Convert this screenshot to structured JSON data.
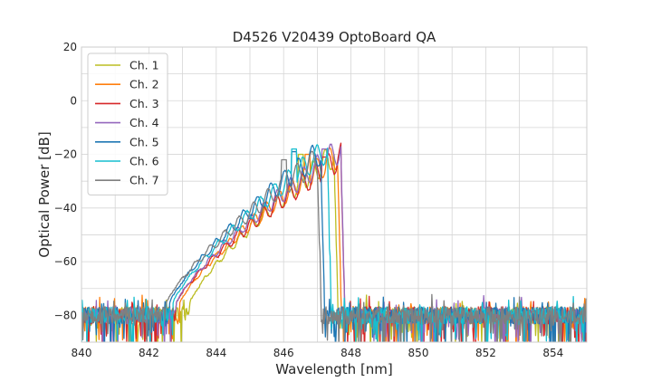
{
  "chart_data": {
    "type": "line",
    "title": "D4526 V20439 OptoBoard QA",
    "xlabel": "Wavelength [nm]",
    "ylabel": "Optical Power [dB]",
    "xlim": [
      840,
      855
    ],
    "ylim": [
      -90,
      20
    ],
    "xticks": [
      840,
      842,
      844,
      846,
      848,
      850,
      852,
      854
    ],
    "yticks": [
      20,
      0,
      -20,
      -40,
      -60,
      -80
    ],
    "grid": true,
    "legend_position": "top-left",
    "noise_floor_db": -80,
    "series": [
      {
        "name": "Ch. 1",
        "color": "#bcbd22",
        "band_start": 843.9,
        "band_end": 847.5,
        "peak_db": -20,
        "peak_wavelength": 846.5
      },
      {
        "name": "Ch. 2",
        "color": "#ff7f0e",
        "band_start": 843.6,
        "band_end": 847.6,
        "peak_db": -20,
        "peak_wavelength": 846.7
      },
      {
        "name": "Ch. 3",
        "color": "#d62728",
        "band_start": 843.5,
        "band_end": 847.7,
        "peak_db": -21,
        "peak_wavelength": 847.2
      },
      {
        "name": "Ch. 4",
        "color": "#9467bd",
        "band_start": 843.5,
        "band_end": 847.7,
        "peak_db": -18,
        "peak_wavelength": 847.2
      },
      {
        "name": "Ch. 5",
        "color": "#1f77b4",
        "band_start": 843.3,
        "band_end": 847.1,
        "peak_db": -19,
        "peak_wavelength": 846.3
      },
      {
        "name": "Ch. 6",
        "color": "#17becf",
        "band_start": 843.4,
        "band_end": 847.3,
        "peak_db": -18,
        "peak_wavelength": 846.3
      },
      {
        "name": "Ch. 7",
        "color": "#7f7f7f",
        "band_start": 843.2,
        "band_end": 847.0,
        "peak_db": -22,
        "peak_wavelength": 846.0
      }
    ]
  }
}
